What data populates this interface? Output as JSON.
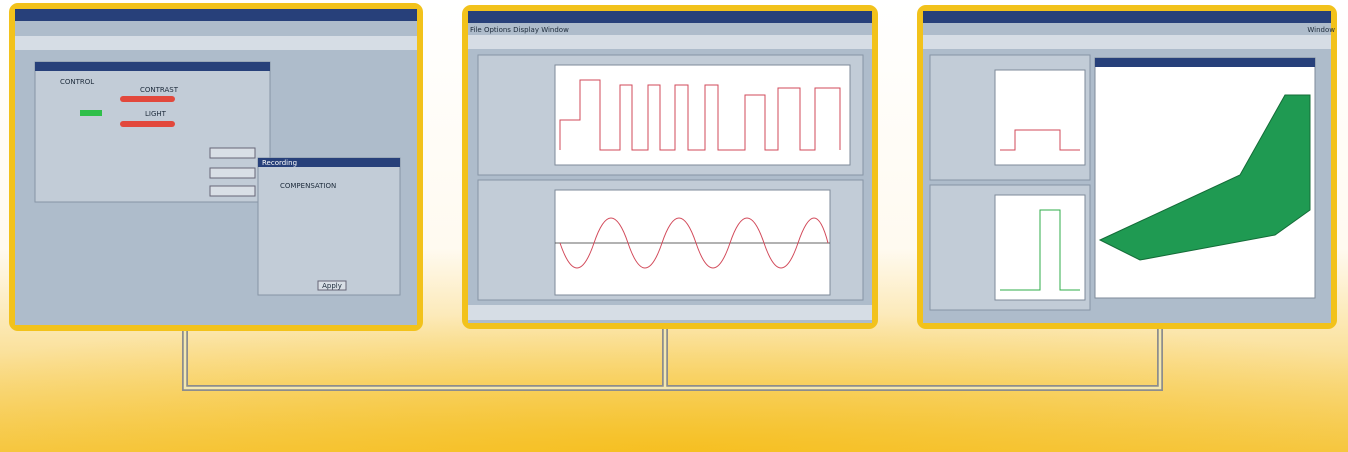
{
  "window1": {
    "control": "CONTROL",
    "contrast": "CONTRAST",
    "light": "LIGHT",
    "recording": "Recording",
    "compensation": "COMPENSATION",
    "apply": "Apply"
  },
  "window2": {
    "menu": "File  Options  Display  Window"
  },
  "window3": {
    "menu": "Window"
  }
}
